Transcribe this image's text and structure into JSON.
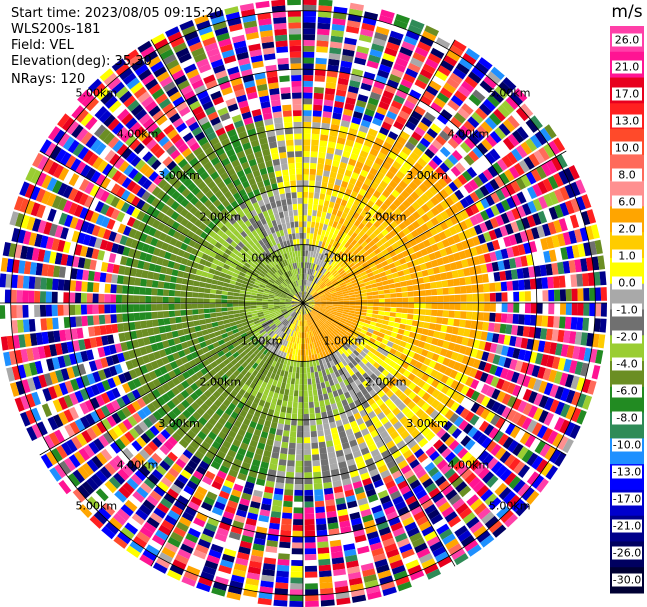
{
  "header": {
    "start_time": "Start time: 2023/08/05 09:15:20",
    "instrument": "WLS200s-181",
    "field": "Field: VEL",
    "elevation": "Elevation(deg): 35.30",
    "nrays": "NRays: 120"
  },
  "colorbar": {
    "unit": "m/s",
    "ticks": [
      "26.0",
      "21.0",
      "17.0",
      "13.0",
      "10.0",
      "8.0",
      "6.0",
      "2.0",
      "1.0",
      "0.0",
      "-1.0",
      "-2.0",
      "-4.0",
      "-6.0",
      "-8.0",
      "-10.0",
      "-13.0",
      "-17.0",
      "-21.0",
      "-26.0",
      "-30.0"
    ],
    "colors": [
      "#ff3fa8",
      "#ff1493",
      "#e8001e",
      "#ff2020",
      "#ff4a2a",
      "#ff6a5a",
      "#ff9090",
      "#ffa500",
      "#ffcc00",
      "#ffff00",
      "#a9a9a9",
      "#707070",
      "#9acd32",
      "#6b8e23",
      "#228b22",
      "#2e8b57",
      "#1e90ff",
      "#0000ff",
      "#0000cd",
      "#00008b",
      "#000060",
      "#000033"
    ]
  },
  "chart_data": {
    "type": "heatmap",
    "projection": "polar-ppi",
    "field": "VEL",
    "nrays": 120,
    "range_rings_km": [
      1.0,
      2.0,
      3.0,
      4.0,
      5.0
    ],
    "ring_labels": [
      "1.00km",
      "2.00km",
      "3.00km",
      "4.00km",
      "5.00km"
    ],
    "max_range_km": 5.2,
    "unit": "m/s",
    "vmin": -30.0,
    "vmax": 30.0,
    "pattern": [
      {
        "sector": "north-east",
        "range_km": [
          1.0,
          3.0
        ],
        "velocity_ms": 2.0
      },
      {
        "sector": "south-east",
        "range_km": [
          0.5,
          1.8
        ],
        "velocity_ms": 6.0
      },
      {
        "sector": "west",
        "range_km": [
          0.5,
          3.0
        ],
        "velocity_ms": -6.0
      },
      {
        "sector": "south-west",
        "range_km": [
          1.0,
          3.0
        ],
        "velocity_ms": -4.0
      },
      {
        "sector": "all",
        "range_km": [
          3.2,
          5.2
        ],
        "velocity_ms": "noise"
      }
    ]
  }
}
